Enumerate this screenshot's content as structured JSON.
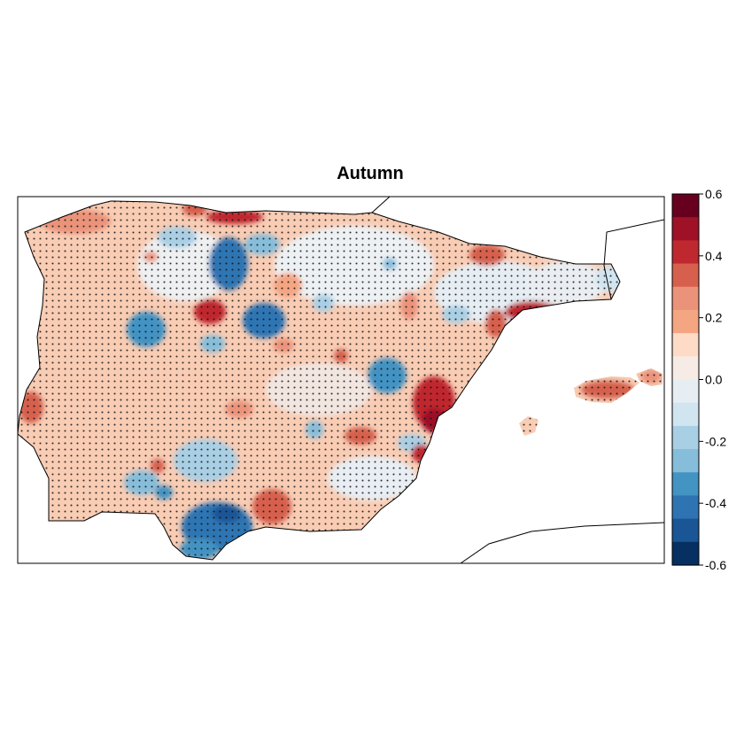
{
  "map": {
    "title": "Autumn",
    "region": "Iberian Peninsula and Balearic Islands",
    "overlay": "significance stippling (black dots)"
  },
  "colorbar": {
    "ticks": [
      "0.6",
      "0.4",
      "0.2",
      "0.0",
      "-0.2",
      "-0.4",
      "-0.6"
    ],
    "range": [
      -0.6,
      0.6
    ],
    "colors": [
      "#67001f",
      "#9e1127",
      "#c0282f",
      "#d6604d",
      "#eb937a",
      "#f4a582",
      "#fddbc7",
      "#f7ebe5",
      "#e6eef4",
      "#d1e5f0",
      "#a9cfe5",
      "#86bdda",
      "#4393c3",
      "#2e74b3",
      "#1a5596",
      "#053061"
    ]
  }
}
